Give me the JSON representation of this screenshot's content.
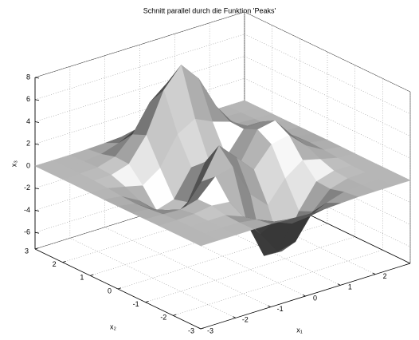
{
  "chart_data": {
    "type": "surface",
    "title": "Schnitt parallel durch die Funktion 'Peaks'",
    "xlabel": "x₁",
    "ylabel": "x₂",
    "zlabel": "x₃",
    "x": [
      -3,
      -2.5,
      -2,
      -1.5,
      -1,
      -0.5,
      0,
      0.5,
      1,
      1.5,
      2,
      2.5,
      3
    ],
    "y": [
      -3,
      -2.5,
      -2,
      -1.5,
      -1,
      -0.5,
      0,
      0.5,
      1,
      1.5,
      2,
      2.5,
      3
    ],
    "z": [
      [
        0.0,
        0.0,
        0.0,
        0.01,
        -0.01,
        -0.09,
        -0.19,
        -0.18,
        -0.09,
        -0.02,
        0.0,
        0.0,
        0.0
      ],
      [
        0.0,
        0.0,
        0.02,
        0.01,
        -0.22,
        -0.89,
        -1.54,
        -1.38,
        -0.68,
        -0.18,
        -0.03,
        0.0,
        0.0
      ],
      [
        0.0,
        0.01,
        0.05,
        0.06,
        -0.55,
        -2.56,
        -4.66,
        -4.27,
        -2.07,
        -0.52,
        -0.06,
        0.0,
        0.0
      ],
      [
        0.0,
        0.01,
        0.08,
        0.33,
        0.17,
        -2.16,
        -5.65,
        -5.74,
        -2.63,
        -0.44,
        0.04,
        0.03,
        0.0
      ],
      [
        -0.01,
        -0.06,
        -0.13,
        0.3,
        1.86,
        2.23,
        -0.73,
        -2.22,
        -0.27,
        0.88,
        0.49,
        0.11,
        0.01
      ],
      [
        -0.02,
        -0.2,
        -0.78,
        -1.21,
        0.8,
        3.56,
        2.0,
        0.39,
        2.2,
        2.55,
        1.1,
        0.23,
        0.02
      ],
      [
        -0.03,
        -0.3,
        -1.31,
        -2.76,
        -1.65,
        1.48,
        0.98,
        0.38,
        2.94,
        3.26,
        1.39,
        0.29,
        0.03
      ],
      [
        -0.03,
        -0.24,
        -1.11,
        -2.49,
        -2.0,
        0.39,
        0.46,
        0.37,
        2.38,
        2.55,
        1.08,
        0.23,
        0.02
      ],
      [
        -0.01,
        -0.11,
        -0.47,
        -0.86,
        0.23,
        2.79,
        3.69,
        2.94,
        2.44,
        1.58,
        0.57,
        0.11,
        0.01
      ],
      [
        0.0,
        -0.02,
        -0.01,
        0.48,
        2.6,
        6.17,
        7.96,
        6.23,
        3.24,
        1.18,
        0.29,
        0.05,
        0.0
      ],
      [
        0.0,
        0.01,
        0.08,
        0.54,
        2.06,
        4.48,
        5.76,
        4.49,
        2.17,
        0.66,
        0.13,
        0.02,
        0.0
      ],
      [
        0.0,
        0.0,
        0.03,
        0.19,
        0.68,
        1.45,
        1.86,
        1.45,
        0.69,
        0.2,
        0.04,
        0.0,
        0.0
      ],
      [
        0.0,
        0.0,
        0.0,
        0.03,
        0.09,
        0.19,
        0.24,
        0.19,
        0.09,
        0.03,
        0.0,
        0.0,
        0.0
      ]
    ],
    "xlim": [
      -3,
      3
    ],
    "ylim": [
      -3,
      3
    ],
    "zlim": [
      -7.5,
      8
    ],
    "xticks": [
      -3,
      -2,
      -1,
      0,
      1,
      2
    ],
    "yticks": [
      -3,
      -2,
      -1,
      0,
      1,
      2,
      3
    ],
    "zticks": [
      -6,
      -4,
      -2,
      0,
      2,
      4,
      6,
      8
    ],
    "grid": true
  }
}
